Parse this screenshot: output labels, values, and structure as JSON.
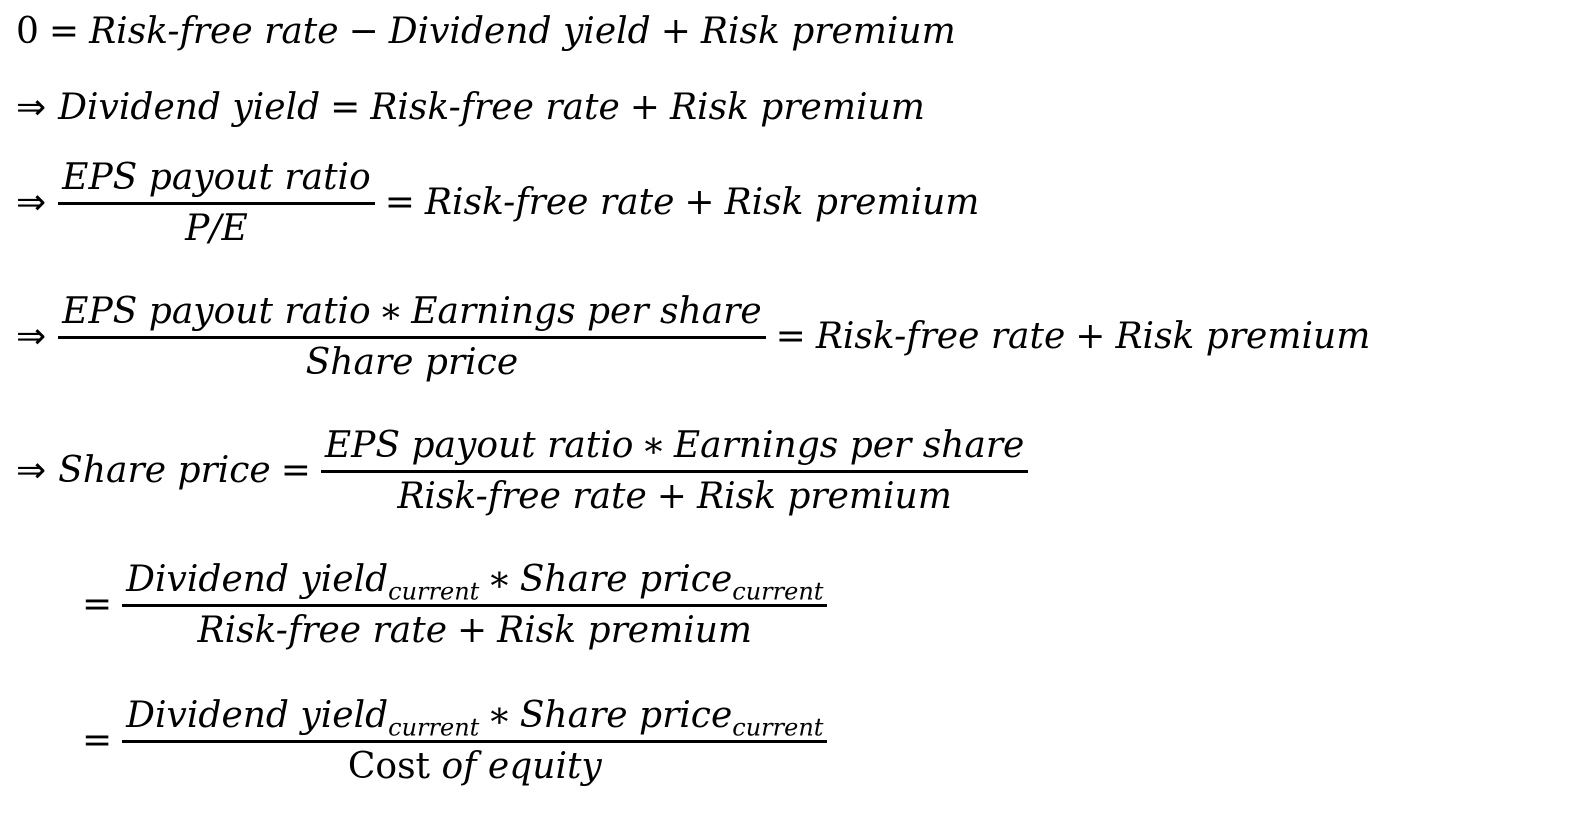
{
  "lines": [
    {
      "lhs": "0",
      "eq": "=",
      "t1": "Risk-free rate",
      "op1": "−",
      "t2": "Dividend yield",
      "op2": "+",
      "t3": "Risk premium"
    },
    {
      "arrow": "⇒",
      "lhs": "Dividend yield",
      "eq": "=",
      "t1": "Risk-free rate",
      "op": "+",
      "t2": "Risk premium"
    },
    {
      "arrow": "⇒",
      "num": "EPS payout ratio",
      "den": "P/E",
      "eq": "=",
      "t1": "Risk-free rate",
      "op": "+",
      "t2": "Risk premium"
    },
    {
      "arrow": "⇒",
      "num1": "EPS payout ratio",
      "star": "∗",
      "num2": "Earnings per share",
      "den": "Share price",
      "eq": "=",
      "t1": "Risk-free rate",
      "op": "+",
      "t2": "Risk premium"
    },
    {
      "arrow": "⇒",
      "lhs": "Share price",
      "eq": "=",
      "num1": "EPS payout ratio",
      "star": "∗",
      "num2": "Earnings per share",
      "den1": "Risk-free rate",
      "op": "+",
      "den2": "Risk premium"
    },
    {
      "eq": "=",
      "num1": "Dividend yield",
      "sub1": "current",
      "star": "∗",
      "num2": "Share price",
      "sub2": "current",
      "den1": "Risk-free rate",
      "op": "+",
      "den2": "Risk premium"
    },
    {
      "eq": "=",
      "num1": "Dividend yield",
      "sub1": "current",
      "star": "∗",
      "num2": "Share price",
      "sub2": "current",
      "den_rm": "Cost",
      "den_it": "of equity"
    }
  ]
}
